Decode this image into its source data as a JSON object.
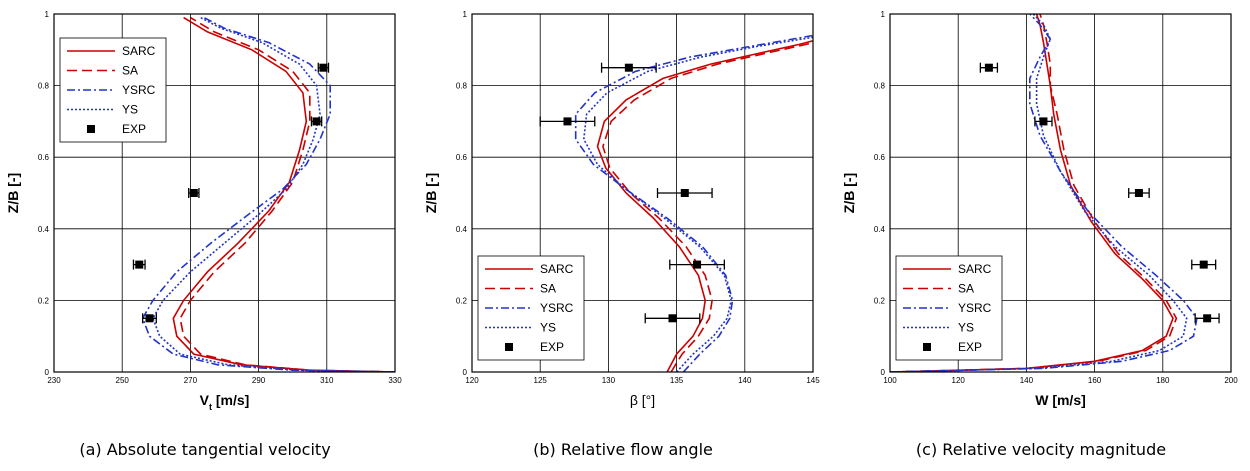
{
  "colors": {
    "red": "#cc0000",
    "blue": "#2233cc",
    "marker": "#000000"
  },
  "legend_labels": [
    "SARC",
    "SA",
    "YSRC",
    "YS",
    "EXP"
  ],
  "chart_data": [
    {
      "type": "line",
      "caption": "(a) Absolute tangential velocity",
      "xlabel_main": "V",
      "xlabel_sub": "t",
      "xlabel_unit": " [m/s]",
      "ylabel": "Z/B [-]",
      "xlim": [
        230,
        330
      ],
      "ylim": [
        0,
        1
      ],
      "xticks": [
        "230",
        "250",
        "270",
        "290",
        "310",
        "330"
      ],
      "xgrid": [
        230,
        250,
        270,
        290,
        310,
        330
      ],
      "yticks": [
        "0",
        "0.2",
        "0.4",
        "0.6",
        "0.8",
        "1"
      ],
      "ygrid": [
        0,
        0.2,
        0.4,
        0.6,
        0.8,
        1
      ],
      "legend_position": "top-left",
      "series": [
        {
          "name": "SARC",
          "style": "solid",
          "color": "red",
          "points": [
            [
              330,
              0
            ],
            [
              305,
              0.005
            ],
            [
              285,
              0.02
            ],
            [
              271,
              0.05
            ],
            [
              266,
              0.1
            ],
            [
              265,
              0.15
            ],
            [
              268,
              0.2
            ],
            [
              275,
              0.28
            ],
            [
              284,
              0.36
            ],
            [
              293,
              0.45
            ],
            [
              299,
              0.53
            ],
            [
              302,
              0.62
            ],
            [
              304,
              0.7
            ],
            [
              303,
              0.78
            ],
            [
              298,
              0.84
            ],
            [
              288,
              0.9
            ],
            [
              275,
              0.95
            ],
            [
              268,
              0.99
            ]
          ]
        },
        {
          "name": "SA",
          "style": "dash",
          "color": "red",
          "points": [
            [
              330,
              0
            ],
            [
              305,
              0.005
            ],
            [
              286,
              0.02
            ],
            [
              273,
              0.05
            ],
            [
              268,
              0.1
            ],
            [
              267,
              0.15
            ],
            [
              270,
              0.2
            ],
            [
              277,
              0.28
            ],
            [
              286,
              0.36
            ],
            [
              294,
              0.45
            ],
            [
              300,
              0.53
            ],
            [
              303,
              0.62
            ],
            [
              305,
              0.7
            ],
            [
              305,
              0.78
            ],
            [
              300,
              0.84
            ],
            [
              290,
              0.9
            ],
            [
              277,
              0.95
            ],
            [
              270,
              0.99
            ]
          ]
        },
        {
          "name": "YSRC",
          "style": "dashdot",
          "color": "blue",
          "points": [
            [
              330,
              0
            ],
            [
              300,
              0.005
            ],
            [
              278,
              0.02
            ],
            [
              265,
              0.05
            ],
            [
              258,
              0.1
            ],
            [
              256,
              0.15
            ],
            [
              259,
              0.2
            ],
            [
              266,
              0.28
            ],
            [
              276,
              0.36
            ],
            [
              287,
              0.44
            ],
            [
              297,
              0.51
            ],
            [
              304,
              0.58
            ],
            [
              308,
              0.65
            ],
            [
              311,
              0.72
            ],
            [
              311,
              0.8
            ],
            [
              305,
              0.86
            ],
            [
              293,
              0.92
            ],
            [
              280,
              0.96
            ],
            [
              274,
              0.99
            ]
          ]
        },
        {
          "name": "YS",
          "style": "dot",
          "color": "blue",
          "points": [
            [
              330,
              0
            ],
            [
              302,
              0.005
            ],
            [
              281,
              0.02
            ],
            [
              267,
              0.05
            ],
            [
              261,
              0.1
            ],
            [
              259,
              0.15
            ],
            [
              262,
              0.2
            ],
            [
              270,
              0.28
            ],
            [
              280,
              0.36
            ],
            [
              290,
              0.44
            ],
            [
              298,
              0.51
            ],
            [
              303,
              0.58
            ],
            [
              306,
              0.65
            ],
            [
              308,
              0.72
            ],
            [
              307,
              0.8
            ],
            [
              302,
              0.86
            ],
            [
              291,
              0.92
            ],
            [
              279,
              0.96
            ],
            [
              273,
              0.99
            ]
          ]
        }
      ],
      "exp": [
        {
          "x": 309,
          "y": 0.85,
          "err": 1.5
        },
        {
          "x": 307,
          "y": 0.7,
          "err": 1.5
        },
        {
          "x": 271,
          "y": 0.5,
          "err": 1.5
        },
        {
          "x": 255,
          "y": 0.3,
          "err": 1.7
        },
        {
          "x": 258,
          "y": 0.15,
          "err": 2.0
        }
      ]
    },
    {
      "type": "line",
      "caption": "(b) Relative flow angle",
      "xlabel_main": "β [°]",
      "xlabel_sub": "",
      "xlabel_unit": "",
      "ylabel": "Z/B [-]",
      "xlim": [
        120,
        145
      ],
      "ylim": [
        0,
        1
      ],
      "xticks": [
        "120",
        "125",
        "130",
        "135",
        "140",
        "145"
      ],
      "xgrid": [
        120,
        125,
        130,
        135,
        140,
        145
      ],
      "yticks": [
        "0",
        "0.2",
        "0.4",
        "0.6",
        "0.8",
        "1"
      ],
      "ygrid": [
        0,
        0.2,
        0.4,
        0.6,
        0.8,
        1
      ],
      "legend_position": "bottom-left",
      "series": [
        {
          "name": "SARC",
          "style": "solid",
          "color": "red",
          "points": [
            [
              134.3,
              0
            ],
            [
              135,
              0.05
            ],
            [
              136.2,
              0.1
            ],
            [
              136.9,
              0.15
            ],
            [
              137.1,
              0.2
            ],
            [
              136.6,
              0.27
            ],
            [
              135.2,
              0.35
            ],
            [
              133.3,
              0.43
            ],
            [
              131.3,
              0.5
            ],
            [
              129.8,
              0.57
            ],
            [
              129.2,
              0.63
            ],
            [
              129.7,
              0.7
            ],
            [
              131.3,
              0.76
            ],
            [
              134,
              0.82
            ],
            [
              137.5,
              0.86
            ],
            [
              141,
              0.89
            ],
            [
              144,
              0.915
            ],
            [
              145,
              0.925
            ]
          ]
        },
        {
          "name": "SA",
          "style": "dash",
          "color": "red",
          "points": [
            [
              134.6,
              0
            ],
            [
              135.4,
              0.05
            ],
            [
              136.6,
              0.1
            ],
            [
              137.4,
              0.15
            ],
            [
              137.6,
              0.2
            ],
            [
              137.1,
              0.27
            ],
            [
              135.7,
              0.35
            ],
            [
              133.7,
              0.43
            ],
            [
              131.6,
              0.5
            ],
            [
              130.1,
              0.57
            ],
            [
              129.6,
              0.63
            ],
            [
              130.2,
              0.7
            ],
            [
              131.9,
              0.76
            ],
            [
              134.6,
              0.82
            ],
            [
              138,
              0.86
            ],
            [
              141.5,
              0.89
            ],
            [
              144.5,
              0.915
            ],
            [
              145,
              0.92
            ]
          ]
        },
        {
          "name": "YSRC",
          "style": "dashdot",
          "color": "blue",
          "points": [
            [
              135.5,
              0
            ],
            [
              136.7,
              0.05
            ],
            [
              138.1,
              0.1
            ],
            [
              138.9,
              0.15
            ],
            [
              139.1,
              0.2
            ],
            [
              138.6,
              0.27
            ],
            [
              136.9,
              0.35
            ],
            [
              134.3,
              0.43
            ],
            [
              131.3,
              0.51
            ],
            [
              128.9,
              0.58
            ],
            [
              127.6,
              0.65
            ],
            [
              127.6,
              0.72
            ],
            [
              129,
              0.78
            ],
            [
              132,
              0.84
            ],
            [
              136,
              0.88
            ],
            [
              140.5,
              0.91
            ],
            [
              145,
              0.94
            ]
          ]
        },
        {
          "name": "YS",
          "style": "dot",
          "color": "blue",
          "points": [
            [
              135,
              0
            ],
            [
              136.2,
              0.05
            ],
            [
              137.7,
              0.1
            ],
            [
              138.7,
              0.15
            ],
            [
              139,
              0.2
            ],
            [
              138.5,
              0.27
            ],
            [
              136.7,
              0.35
            ],
            [
              134.1,
              0.43
            ],
            [
              131.3,
              0.51
            ],
            [
              129.2,
              0.58
            ],
            [
              128.2,
              0.65
            ],
            [
              128.4,
              0.72
            ],
            [
              129.9,
              0.78
            ],
            [
              132.9,
              0.84
            ],
            [
              136.8,
              0.88
            ],
            [
              141,
              0.91
            ],
            [
              145,
              0.935
            ]
          ]
        }
      ],
      "exp": [
        {
          "x": 131.5,
          "y": 0.85,
          "err": 2.0
        },
        {
          "x": 127.0,
          "y": 0.7,
          "err": 2.0
        },
        {
          "x": 135.6,
          "y": 0.5,
          "err": 2.0
        },
        {
          "x": 136.5,
          "y": 0.3,
          "err": 2.0
        },
        {
          "x": 134.7,
          "y": 0.15,
          "err": 2.0
        }
      ]
    },
    {
      "type": "line",
      "caption": "(c) Relative velocity magnitude",
      "xlabel_main": "W [m/s]",
      "xlabel_sub": "",
      "xlabel_unit": "",
      "ylabel": "Z/B [-]",
      "xlim": [
        100,
        200
      ],
      "ylim": [
        0,
        1
      ],
      "xticks": [
        "100",
        "120",
        "140",
        "160",
        "180",
        "200"
      ],
      "xgrid": [
        100,
        120,
        140,
        160,
        180,
        200
      ],
      "yticks": [
        "0",
        "0.2",
        "0.4",
        "0.6",
        "0.8",
        "1"
      ],
      "ygrid": [
        0,
        0.2,
        0.4,
        0.6,
        0.8,
        1
      ],
      "legend_position": "bottom-left",
      "series": [
        {
          "name": "SARC",
          "style": "solid",
          "color": "red",
          "points": [
            [
              100,
              0
            ],
            [
              140,
              0.01
            ],
            [
              160,
              0.03
            ],
            [
              174,
              0.06
            ],
            [
              181,
              0.1
            ],
            [
              183,
              0.15
            ],
            [
              180,
              0.2
            ],
            [
              174,
              0.26
            ],
            [
              166,
              0.33
            ],
            [
              159,
              0.42
            ],
            [
              153,
              0.52
            ],
            [
              150,
              0.62
            ],
            [
              148,
              0.72
            ],
            [
              147,
              0.8
            ],
            [
              146,
              0.86
            ],
            [
              145,
              0.92
            ],
            [
              144,
              0.97
            ],
            [
              143,
              1.0
            ]
          ]
        },
        {
          "name": "SA",
          "style": "dash",
          "color": "red",
          "points": [
            [
              100,
              0
            ],
            [
              140,
              0.01
            ],
            [
              161,
              0.03
            ],
            [
              175,
              0.06
            ],
            [
              182,
              0.1
            ],
            [
              184,
              0.15
            ],
            [
              181,
              0.2
            ],
            [
              175,
              0.26
            ],
            [
              167,
              0.33
            ],
            [
              160,
              0.42
            ],
            [
              154,
              0.52
            ],
            [
              151,
              0.62
            ],
            [
              149,
              0.72
            ],
            [
              147,
              0.8
            ],
            [
              147,
              0.86
            ],
            [
              146,
              0.92
            ],
            [
              145,
              0.97
            ],
            [
              144,
              1.0
            ]
          ]
        },
        {
          "name": "YSRC",
          "style": "dashdot",
          "color": "blue",
          "points": [
            [
              100,
              0
            ],
            [
              145,
              0.01
            ],
            [
              168,
              0.03
            ],
            [
              182,
              0.06
            ],
            [
              189,
              0.1
            ],
            [
              190,
              0.15
            ],
            [
              186,
              0.2
            ],
            [
              178,
              0.27
            ],
            [
              168,
              0.35
            ],
            [
              158,
              0.45
            ],
            [
              150,
              0.56
            ],
            [
              144,
              0.66
            ],
            [
              141,
              0.75
            ],
            [
              141,
              0.82
            ],
            [
              144,
              0.88
            ],
            [
              147,
              0.93
            ],
            [
              144,
              0.97
            ],
            [
              141,
              1.0
            ]
          ]
        },
        {
          "name": "YS",
          "style": "dot",
          "color": "blue",
          "points": [
            [
              100,
              0
            ],
            [
              143,
              0.01
            ],
            [
              165,
              0.03
            ],
            [
              179,
              0.06
            ],
            [
              186,
              0.1
            ],
            [
              187,
              0.15
            ],
            [
              183,
              0.2
            ],
            [
              176,
              0.27
            ],
            [
              166,
              0.35
            ],
            [
              157,
              0.45
            ],
            [
              150,
              0.56
            ],
            [
              145,
              0.66
            ],
            [
              143,
              0.75
            ],
            [
              143,
              0.82
            ],
            [
              145,
              0.88
            ],
            [
              147,
              0.93
            ],
            [
              145,
              0.97
            ],
            [
              142,
              1.0
            ]
          ]
        }
      ],
      "exp": [
        {
          "x": 129,
          "y": 0.85,
          "err": 2.5
        },
        {
          "x": 145,
          "y": 0.7,
          "err": 2.5
        },
        {
          "x": 173,
          "y": 0.5,
          "err": 3.0
        },
        {
          "x": 192,
          "y": 0.3,
          "err": 3.5
        },
        {
          "x": 193,
          "y": 0.15,
          "err": 3.5
        }
      ]
    }
  ]
}
